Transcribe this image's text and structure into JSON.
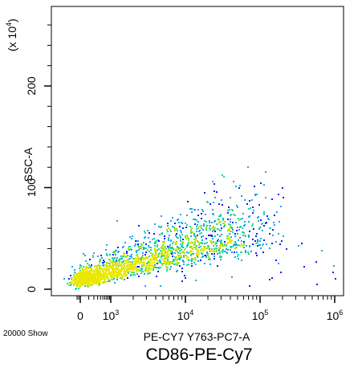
{
  "chart_data": {
    "type": "scatter",
    "plot_style": "density dot plot (flow cytometry)",
    "xlabel": "PE-CY7 Y763-PC7-A",
    "ylabel": "SSC-A",
    "y_multiplier_label": "(x 10",
    "y_multiplier_exponent": "4",
    "y_multiplier_close": ")",
    "events_label": "20000 Show",
    "caption": "CD86-PE-Cy7",
    "x_scale": "logicle (linear near 0, log10 above)",
    "y_scale": "linear",
    "xlim": [
      -300,
      1000000
    ],
    "ylim": [
      -15000,
      2900000
    ],
    "x_ticks": [
      {
        "value": 0,
        "base": "0",
        "exp": ""
      },
      {
        "value": 1000,
        "base": "10",
        "exp": "3"
      },
      {
        "value": 10000,
        "base": "10",
        "exp": "4"
      },
      {
        "value": 100000,
        "base": "10",
        "exp": "5"
      },
      {
        "value": 1000000,
        "base": "10",
        "exp": "6"
      }
    ],
    "y_ticks": [
      {
        "value": 0,
        "label": "0"
      },
      {
        "value": 1000000,
        "label": "100"
      },
      {
        "value": 2000000,
        "label": "200"
      }
    ],
    "population": {
      "events": 20000,
      "main_cluster": {
        "x_median": 1000,
        "y_median": 200000
      },
      "x_range": [
        -200,
        60000
      ],
      "y_range": [
        0,
        900000
      ],
      "density_colors": [
        "#1a1aff",
        "#17a8e8",
        "#1fd6a6",
        "#9be01e",
        "#e8e800"
      ]
    },
    "grid": false,
    "legend": "none"
  },
  "colors": {
    "background": "#ffffff",
    "axis": "#000000",
    "low_density": "#1a1aff",
    "high_density": "#e8e800"
  }
}
